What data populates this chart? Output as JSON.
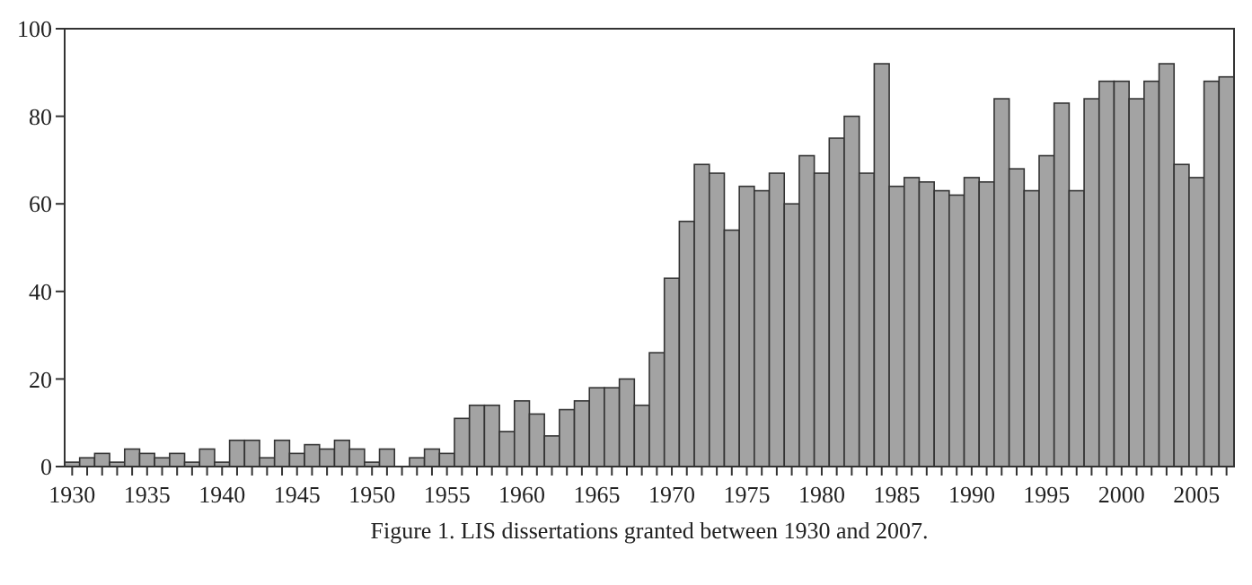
{
  "chart_data": {
    "type": "bar",
    "categories": [
      "1930",
      null,
      null,
      null,
      null,
      "1935",
      null,
      null,
      null,
      null,
      "1940",
      null,
      null,
      null,
      null,
      "1945",
      null,
      null,
      null,
      null,
      "1950",
      null,
      null,
      null,
      null,
      "1955",
      null,
      null,
      null,
      null,
      "1960",
      null,
      null,
      null,
      null,
      "1965",
      null,
      null,
      null,
      null,
      "1970",
      null,
      null,
      null,
      null,
      "1975",
      null,
      null,
      null,
      null,
      "1980",
      null,
      null,
      null,
      null,
      "1985",
      null,
      null,
      null,
      null,
      "1990",
      null,
      null,
      null,
      null,
      "1995",
      null,
      null,
      null,
      null,
      "2000",
      null,
      null,
      null,
      null,
      "2005",
      null,
      null
    ],
    "values": [
      1,
      2,
      3,
      1,
      4,
      3,
      2,
      3,
      1,
      4,
      1,
      6,
      6,
      2,
      6,
      3,
      5,
      4,
      6,
      4,
      1,
      4,
      0,
      2,
      4,
      3,
      11,
      14,
      14,
      8,
      15,
      12,
      7,
      13,
      15,
      18,
      18,
      20,
      14,
      26,
      43,
      56,
      69,
      67,
      54,
      64,
      63,
      67,
      60,
      71,
      67,
      75,
      80,
      67,
      92,
      64,
      66,
      65,
      63,
      62,
      66,
      65,
      84,
      68,
      63,
      71,
      83,
      63,
      84,
      88,
      88,
      84,
      88,
      92,
      69,
      66,
      88,
      89
    ],
    "color": "#a3a3a3",
    "ylim": [
      0,
      100
    ],
    "yticks": [
      0,
      20,
      40,
      60,
      80,
      100
    ],
    "grid": false,
    "annotations": [
      "Figure 1.  LIS dissertations granted between 1930 and 2007."
    ]
  }
}
